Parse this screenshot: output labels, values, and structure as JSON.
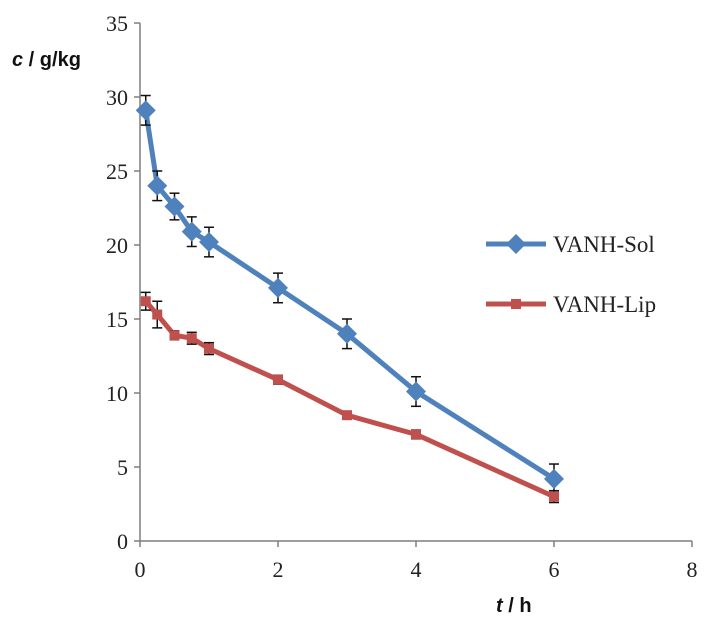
{
  "chart_data": {
    "type": "line",
    "title": "",
    "xlabel_var": "t",
    "xlabel_unit": " / h",
    "ylabel_var": "c",
    "ylabel_unit": " / g/kg",
    "xlim": [
      0,
      8
    ],
    "ylim": [
      0,
      35
    ],
    "x_ticks": [
      0,
      2,
      4,
      6,
      8
    ],
    "y_ticks": [
      0,
      5,
      10,
      15,
      20,
      25,
      30,
      35
    ],
    "grid": false,
    "legend_position": "right",
    "series": [
      {
        "name": "VANH-Sol",
        "color": "#4F81BD",
        "marker": "diamond",
        "x": [
          0.083,
          0.25,
          0.5,
          0.75,
          1,
          2,
          3,
          4,
          6
        ],
        "y": [
          29.1,
          24.0,
          22.6,
          20.9,
          20.2,
          17.1,
          14.0,
          10.1,
          4.2
        ],
        "error": [
          1.0,
          1.0,
          0.9,
          1.0,
          1.0,
          1.0,
          1.0,
          1.0,
          1.0
        ]
      },
      {
        "name": "VANH-Lip",
        "color": "#C0504D",
        "marker": "square",
        "x": [
          0.083,
          0.25,
          0.5,
          0.75,
          1,
          2,
          3,
          4,
          6
        ],
        "y": [
          16.2,
          15.3,
          13.9,
          13.7,
          13.0,
          10.9,
          8.5,
          7.2,
          3.0
        ],
        "error": [
          0.6,
          0.9,
          0.3,
          0.4,
          0.4,
          0.3,
          0.2,
          0.3,
          0.4
        ]
      }
    ]
  }
}
